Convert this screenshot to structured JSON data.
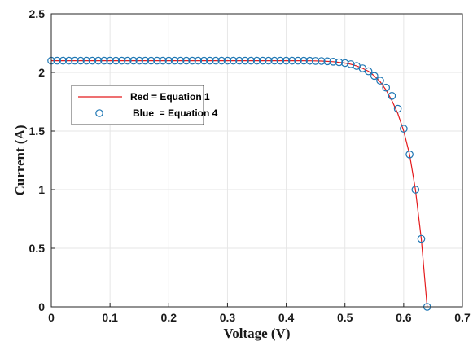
{
  "chart_data": {
    "type": "line",
    "xlabel": "Voltage (V)",
    "ylabel": "Current (A)",
    "xlim": [
      0,
      0.7
    ],
    "ylim": [
      0,
      2.5
    ],
    "x_ticks": [
      "0",
      "0.1",
      "0.2",
      "0.3",
      "0.4",
      "0.5",
      "0.6",
      "0.7"
    ],
    "y_ticks": [
      "0",
      "0.5",
      "1",
      "1.5",
      "2",
      "2.5"
    ],
    "grid": true,
    "legend_position": "upper-left",
    "series": [
      {
        "name": "Red = Equation 1",
        "style": "line",
        "color": "#e41a1c",
        "x": [
          0,
          0.05,
          0.1,
          0.15,
          0.2,
          0.25,
          0.3,
          0.35,
          0.4,
          0.42,
          0.44,
          0.46,
          0.48,
          0.5,
          0.51,
          0.52,
          0.53,
          0.54,
          0.55,
          0.56,
          0.57,
          0.58,
          0.59,
          0.6,
          0.61,
          0.62,
          0.63,
          0.64
        ],
        "y": [
          2.1,
          2.1,
          2.1,
          2.1,
          2.1,
          2.1,
          2.1,
          2.1,
          2.1,
          2.1,
          2.099,
          2.097,
          2.092,
          2.08,
          2.07,
          2.055,
          2.035,
          2.01,
          1.97,
          1.92,
          1.85,
          1.76,
          1.65,
          1.5,
          1.3,
          1.0,
          0.58,
          0.0
        ]
      },
      {
        "name": "Blue  = Equation 4",
        "style": "marker",
        "color": "#1f77b4",
        "x": [
          0,
          0.01,
          0.02,
          0.03,
          0.04,
          0.05,
          0.06,
          0.07,
          0.08,
          0.09,
          0.1,
          0.11,
          0.12,
          0.13,
          0.14,
          0.15,
          0.16,
          0.17,
          0.18,
          0.19,
          0.2,
          0.21,
          0.22,
          0.23,
          0.24,
          0.25,
          0.26,
          0.27,
          0.28,
          0.29,
          0.3,
          0.31,
          0.32,
          0.33,
          0.34,
          0.35,
          0.36,
          0.37,
          0.38,
          0.39,
          0.4,
          0.41,
          0.42,
          0.43,
          0.44,
          0.45,
          0.46,
          0.47,
          0.48,
          0.49,
          0.5,
          0.51,
          0.52,
          0.53,
          0.54,
          0.55,
          0.56,
          0.57,
          0.58,
          0.59,
          0.6,
          0.61,
          0.62,
          0.63,
          0.64
        ],
        "y": [
          2.1,
          2.1,
          2.1,
          2.1,
          2.1,
          2.1,
          2.1,
          2.1,
          2.1,
          2.1,
          2.1,
          2.1,
          2.1,
          2.1,
          2.1,
          2.1,
          2.1,
          2.1,
          2.1,
          2.1,
          2.1,
          2.1,
          2.1,
          2.1,
          2.1,
          2.1,
          2.1,
          2.1,
          2.1,
          2.1,
          2.1,
          2.1,
          2.1,
          2.1,
          2.1,
          2.1,
          2.1,
          2.1,
          2.1,
          2.1,
          2.1,
          2.1,
          2.1,
          2.1,
          2.099,
          2.098,
          2.097,
          2.095,
          2.092,
          2.087,
          2.08,
          2.07,
          2.055,
          2.035,
          2.01,
          1.97,
          1.93,
          1.87,
          1.8,
          1.69,
          1.52,
          1.3,
          1.0,
          0.58,
          0.0
        ]
      }
    ]
  }
}
